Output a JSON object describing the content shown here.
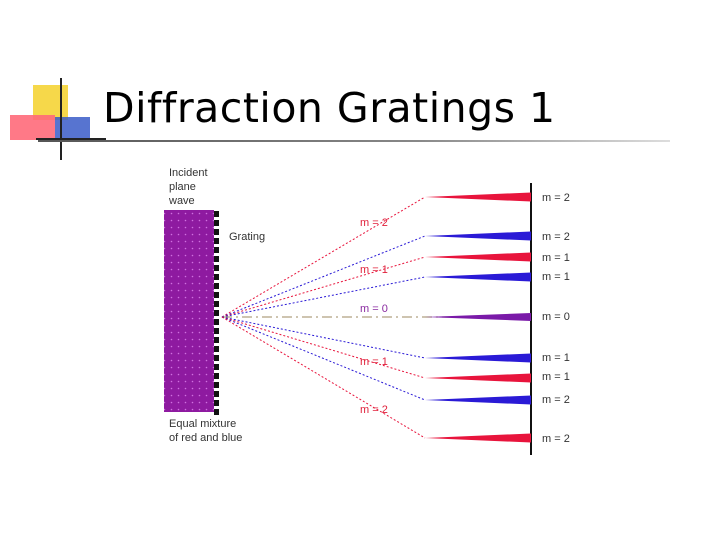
{
  "slide": {
    "title": "Diffraction Gratings 1"
  },
  "diagram": {
    "incident_label": [
      "Incident",
      "plane",
      "wave"
    ],
    "grating_label": "Grating",
    "mixture_label": [
      "Equal mixture",
      "of red and blue"
    ],
    "fan_labels": [
      {
        "text": "m = 2",
        "color": "#e0203a"
      },
      {
        "text": "m = 1",
        "color": "#e0203a"
      },
      {
        "text": "m = 0",
        "color": "#8a2aa0"
      },
      {
        "text": "m = 1",
        "color": "#e0203a"
      },
      {
        "text": "m = 2",
        "color": "#e0203a"
      }
    ],
    "screen_labels": [
      {
        "text": "m = 2",
        "color": "red"
      },
      {
        "text": "m = 2",
        "color": "blue"
      },
      {
        "text": "m = 1",
        "color": "red"
      },
      {
        "text": "m = 1",
        "color": "blue"
      },
      {
        "text": "m = 0",
        "color": "purple"
      },
      {
        "text": "m = 1",
        "color": "blue"
      },
      {
        "text": "m = 1",
        "color": "red"
      },
      {
        "text": "m = 2",
        "color": "blue"
      },
      {
        "text": "m = 2",
        "color": "red"
      }
    ],
    "colors": {
      "red": "#e8143c",
      "blue": "#2a1ad6",
      "purple": "#7a1aa8",
      "wave": "#9a1aa8",
      "axis": "#b0a080"
    }
  }
}
